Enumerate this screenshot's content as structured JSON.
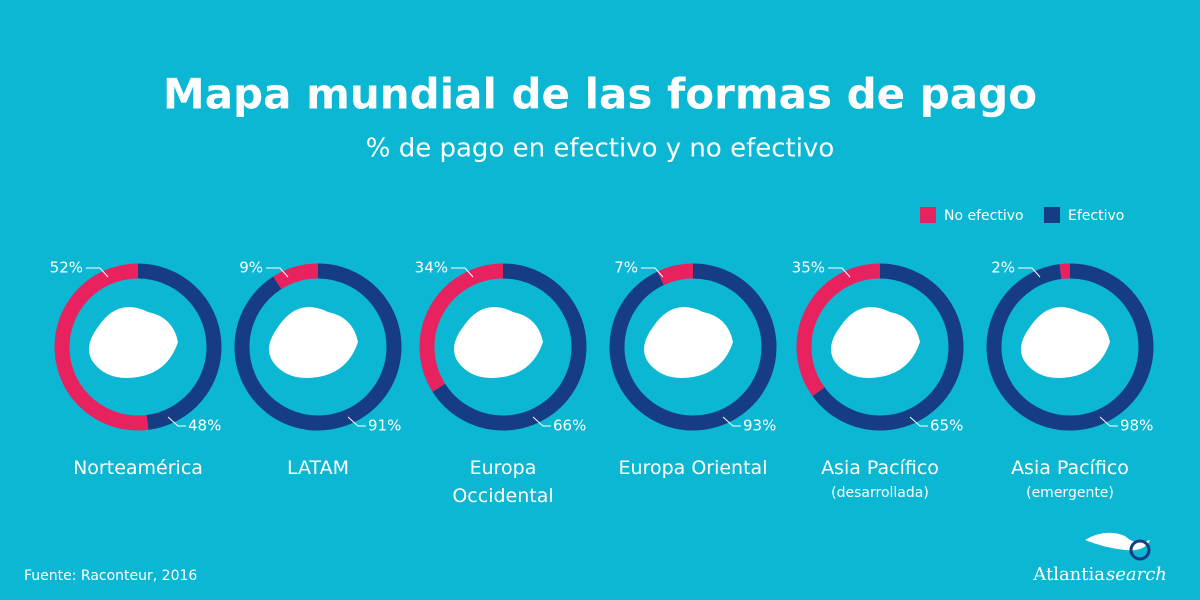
{
  "chart_data": {
    "type": "donut",
    "title": "Mapa mundial de las formas de pago",
    "subtitle": "% de pago en efectivo y no efectivo",
    "categories": [
      "Norteamérica",
      "LATAM",
      "Europa Occidental",
      "Europa Oriental",
      "Asia Pacífico",
      "Asia Pacífico"
    ],
    "category_notes": [
      null,
      null,
      null,
      null,
      "(desarrollada)",
      "(emergente)"
    ],
    "series": [
      {
        "name": "No efectivo",
        "color": "#e8225f",
        "values": [
          52,
          9,
          34,
          7,
          35,
          2
        ],
        "value_labels": [
          "52%",
          "9%",
          "34%",
          "7%",
          "35%",
          "2%"
        ]
      },
      {
        "name": "Efectivo",
        "color": "#163c84",
        "values": [
          48,
          91,
          66,
          93,
          65,
          98
        ],
        "value_labels": [
          "48%",
          "91%",
          "66%",
          "93%",
          "65%",
          "98%"
        ]
      }
    ],
    "source": "Fuente: Raconteur, 2016",
    "brand": {
      "name": "Atlantia",
      "suffix": "search"
    }
  }
}
